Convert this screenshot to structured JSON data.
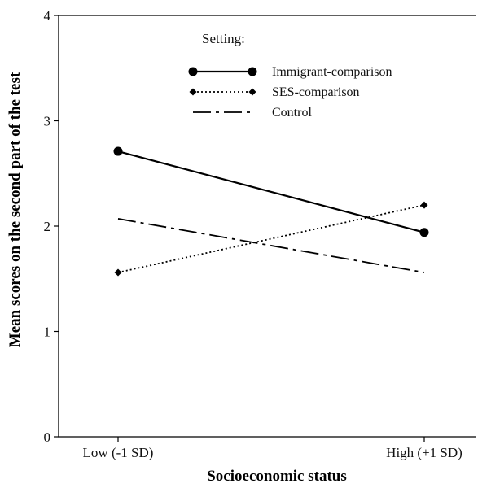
{
  "chart_data": {
    "type": "line",
    "xlabel": "Socioeconomic status",
    "ylabel": "Mean scores on the second part of the test",
    "categories": [
      "Low (-1 SD)",
      "High (+1 SD)"
    ],
    "ylim": [
      0,
      4
    ],
    "yticks": [
      0,
      1,
      2,
      3,
      4
    ],
    "grid": false,
    "legend": {
      "title": "Setting:",
      "placement": "top-center"
    },
    "series": [
      {
        "name": "Immigrant-comparison",
        "values": [
          2.71,
          1.94
        ],
        "style": "solid",
        "marker": "circle",
        "color": "#000000"
      },
      {
        "name": "SES-comparison",
        "values": [
          1.56,
          2.2
        ],
        "style": "dotted",
        "marker": "diamond",
        "color": "#000000"
      },
      {
        "name": "Control",
        "values": [
          2.07,
          1.56
        ],
        "style": "dashdot",
        "marker": "none",
        "color": "#000000"
      }
    ]
  }
}
